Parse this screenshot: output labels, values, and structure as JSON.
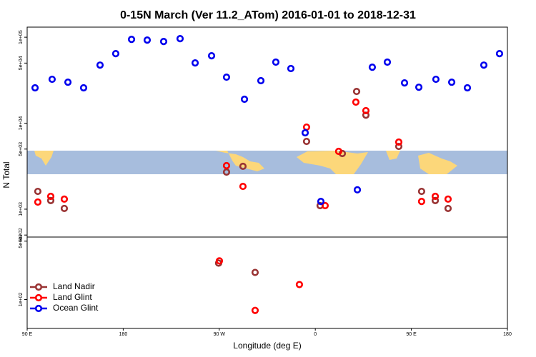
{
  "chart_data": [
    {
      "type": "scatter",
      "title": "0-15N March (Ver 11.2_ATom)   2016-01-01 to 2018-12-31",
      "ylabel": "N Total",
      "log_y": true,
      "xlim": [
        90,
        540
      ],
      "ylim": [
        474,
        131000
      ],
      "yticks": [
        {
          "value": 100000,
          "label": "1e+05"
        },
        {
          "value": 50000,
          "label": "5e+04"
        },
        {
          "value": 10000,
          "label": "1e+04"
        },
        {
          "value": 5000,
          "label": "5e+03"
        },
        {
          "value": 1000,
          "label": "1e+03"
        },
        {
          "value": 500,
          "label": "5e+02"
        }
      ],
      "series": [
        {
          "color": "#993333",
          "x": [
            100.0,
            112.1,
            124.8,
            276.8,
            292.2,
            351.8,
            364.5,
            385.3,
            398.7,
            407.4,
            438.2,
            459.6,
            472.4,
            484.4
          ],
          "values": [
            1610,
            1260,
            1020,
            2700,
            3150,
            6140,
            1100,
            4440,
            23400,
            12400,
            5370,
            1610,
            1260,
            1020
          ]
        },
        {
          "color": "#ff0000",
          "x": [
            100.0,
            112.1,
            124.8,
            276.8,
            292.2,
            351.8,
            369.2,
            381.9,
            398.0,
            407.4,
            438.2,
            459.6,
            472.4,
            484.4
          ],
          "values": [
            1210,
            1410,
            1310,
            3210,
            1840,
            9000,
            1100,
            4700,
            17600,
            14000,
            6030,
            1230,
            1410,
            1310
          ]
        },
        {
          "color": "#0000ee",
          "x": [
            97.4,
            113.4,
            128.2,
            142.9,
            158.3,
            173.0,
            187.8,
            202.5,
            217.9,
            233.3,
            247.4,
            262.8,
            276.8,
            293.6,
            309.0,
            323.0,
            337.1,
            350.5,
            365.2,
            399.4,
            413.4,
            427.5,
            443.6,
            457.0,
            473.0,
            487.8,
            502.5,
            517.9,
            532.6
          ],
          "values": [
            25800,
            32400,
            30000,
            25800,
            47400,
            64400,
            94400,
            92600,
            89200,
            96200,
            50200,
            60800,
            34300,
            19000,
            31200,
            51300,
            43200,
            7730,
            1230,
            1680,
            44800,
            51300,
            29400,
            26200,
            32400,
            30000,
            25800,
            47400,
            64400
          ]
        }
      ]
    },
    {
      "type": "scatter",
      "xlabel": "Longitude (deg E)",
      "log_y": true,
      "legend": "lower left",
      "xlim": [
        90,
        540
      ],
      "ylim": [
        45,
        560
      ],
      "xticks": [
        {
          "value": 90,
          "label": "90 E"
        },
        180,
        {
          "value": 270,
          "label": "90 W"
        },
        {
          "value": 360,
          "label": "0"
        },
        {
          "value": 450,
          "label": "90 E"
        },
        {
          "value": 540,
          "label": "180"
        }
      ],
      "yticks": [
        {
          "value": 500,
          "label": "5e+02"
        },
        {
          "value": 100,
          "label": "1e+02"
        }
      ],
      "series": [
        {
          "name": "Land Nadir",
          "color": "#993333",
          "x": [
            269.4,
            303.6
          ],
          "values": [
            273,
            211
          ]
        },
        {
          "name": "Land Glint",
          "color": "#ff0000",
          "x": [
            270.1,
            345.1,
            303.6
          ],
          "values": [
            290,
            151,
            74
          ]
        },
        {
          "name": "Ocean Glint",
          "color": "#0000ee",
          "x": [],
          "values": []
        }
      ]
    }
  ]
}
